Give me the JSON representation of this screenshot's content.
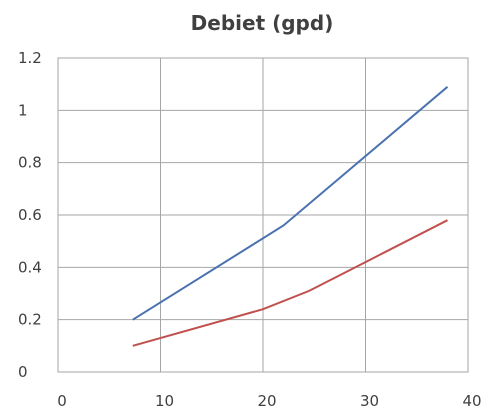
{
  "chart_data": {
    "type": "line",
    "title": "Debiet (gpd)",
    "xlabel": "",
    "ylabel": "",
    "xlim": [
      0,
      40
    ],
    "ylim": [
      0,
      1.2
    ],
    "x_ticks": [
      "0",
      "10",
      "20",
      "30",
      "40"
    ],
    "y_ticks": [
      "0",
      "0.2",
      "0.4",
      "0.6",
      "0.8",
      "1",
      "1.2"
    ],
    "grid": true,
    "legend": "none",
    "series": [
      {
        "color": "#4a72b0",
        "x": [
          7.3,
          22,
          38
        ],
        "y": [
          0.2,
          0.56,
          1.09
        ]
      },
      {
        "color": "#c0504d",
        "x": [
          7.3,
          20,
          24.5,
          30,
          38
        ],
        "y": [
          0.1,
          0.24,
          0.31,
          0.42,
          0.58
        ]
      }
    ]
  }
}
